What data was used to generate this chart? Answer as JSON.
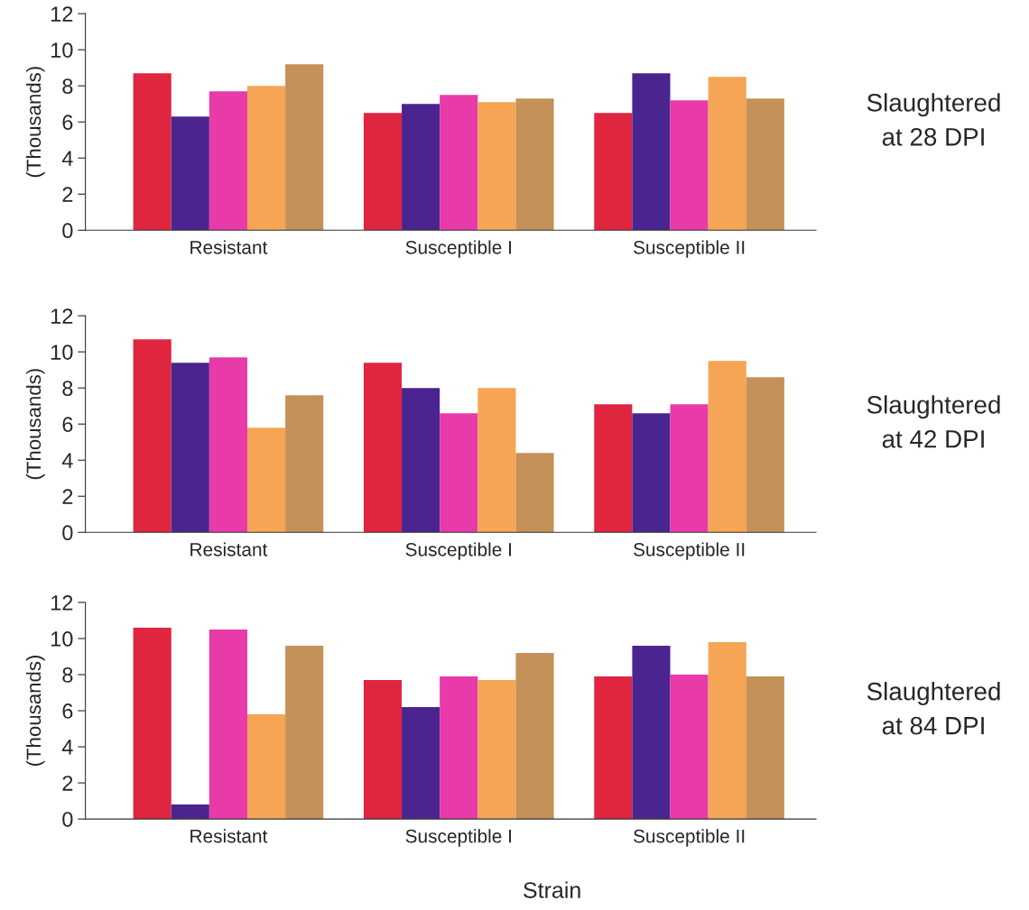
{
  "chart_data": [
    {
      "type": "bar",
      "annotations": [
        "Slaughtered\nat 28 DPI"
      ],
      "ylabel": "(Thousands)",
      "categories": [
        "Resistant",
        "Susceptible I",
        "Susceptible II"
      ],
      "ylim": [
        0,
        12
      ],
      "yticks": [
        0,
        2,
        4,
        6,
        8,
        10,
        12
      ],
      "grid": false,
      "series": [
        {
          "color": "#e0253f",
          "values": [
            8.7,
            6.5,
            6.5
          ]
        },
        {
          "color": "#4a2590",
          "values": [
            6.3,
            7.0,
            8.7
          ]
        },
        {
          "color": "#e83aa8",
          "values": [
            7.7,
            7.5,
            7.2
          ]
        },
        {
          "color": "#f5a553",
          "values": [
            8.0,
            7.1,
            8.5
          ]
        },
        {
          "color": "#c49158",
          "values": [
            9.2,
            7.3,
            7.3
          ]
        }
      ]
    },
    {
      "type": "bar",
      "annotations": [
        "Slaughtered\nat 42 DPI"
      ],
      "ylabel": "(Thousands)",
      "categories": [
        "Resistant",
        "Susceptible I",
        "Susceptible II"
      ],
      "ylim": [
        0,
        12
      ],
      "yticks": [
        0,
        2,
        4,
        6,
        8,
        10,
        12
      ],
      "grid": false,
      "series": [
        {
          "color": "#e0253f",
          "values": [
            10.7,
            9.4,
            7.1
          ]
        },
        {
          "color": "#4a2590",
          "values": [
            9.4,
            8.0,
            6.6
          ]
        },
        {
          "color": "#e83aa8",
          "values": [
            9.7,
            6.6,
            7.1
          ]
        },
        {
          "color": "#f5a553",
          "values": [
            5.8,
            8.0,
            9.5
          ]
        },
        {
          "color": "#c49158",
          "values": [
            7.6,
            4.4,
            8.6
          ]
        }
      ]
    },
    {
      "type": "bar",
      "annotations": [
        "Slaughtered\nat 84 DPI"
      ],
      "ylabel": "(Thousands)",
      "xlabel": "Strain",
      "categories": [
        "Resistant",
        "Susceptible I",
        "Susceptible II"
      ],
      "ylim": [
        0,
        12
      ],
      "yticks": [
        0,
        2,
        4,
        6,
        8,
        10,
        12
      ],
      "grid": false,
      "series": [
        {
          "color": "#e0253f",
          "values": [
            10.6,
            7.7,
            7.9
          ]
        },
        {
          "color": "#4a2590",
          "values": [
            0.8,
            6.2,
            9.6
          ]
        },
        {
          "color": "#e83aa8",
          "values": [
            10.5,
            7.9,
            8.0
          ]
        },
        {
          "color": "#f5a553",
          "values": [
            5.8,
            7.7,
            9.8
          ]
        },
        {
          "color": "#c49158",
          "values": [
            9.6,
            9.2,
            7.9
          ]
        }
      ]
    }
  ]
}
